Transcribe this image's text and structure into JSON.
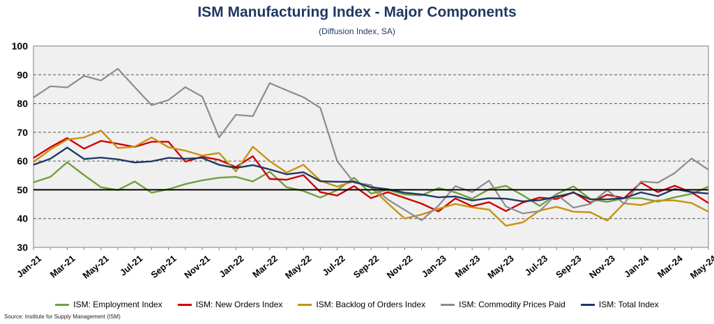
{
  "chart_data": {
    "type": "line",
    "title": "ISM Manufacturing Index - Major Components",
    "subtitle": "(Diffusion Index, SA)",
    "source": "Source: Institute for Supply Management (ISM)",
    "ylim": [
      30,
      100
    ],
    "yticks": [
      30,
      40,
      50,
      60,
      70,
      80,
      90,
      100
    ],
    "grid": true,
    "legend_position": "bottom",
    "reference_line": 50,
    "x": [
      "Jan-21",
      "Feb-21",
      "Mar-21",
      "Apr-21",
      "May-21",
      "Jun-21",
      "Jul-21",
      "Aug-21",
      "Sep-21",
      "Oct-21",
      "Nov-21",
      "Dec-21",
      "Jan-22",
      "Feb-22",
      "Mar-22",
      "Apr-22",
      "May-22",
      "Jun-22",
      "Jul-22",
      "Aug-22",
      "Sep-22",
      "Oct-22",
      "Nov-22",
      "Dec-22",
      "Jan-23",
      "Feb-23",
      "Mar-23",
      "Apr-23",
      "May-23",
      "Jun-23",
      "Jul-23",
      "Aug-23",
      "Sep-23",
      "Oct-23",
      "Nov-23",
      "Dec-23",
      "Jan-24",
      "Feb-24",
      "Mar-24",
      "Apr-24",
      "May-24"
    ],
    "x_tick_labels": [
      "Jan-21",
      "Mar-21",
      "May-21",
      "Jul-21",
      "Sep-21",
      "Nov-21",
      "Jan-22",
      "Mar-22",
      "May-22",
      "Jul-22",
      "Sep-22",
      "Nov-22",
      "Jan-23",
      "Mar-23",
      "May-23",
      "Jul-23",
      "Sep-23",
      "Nov-23",
      "Jan-24",
      "Mar-24",
      "May-24"
    ],
    "series": [
      {
        "name": "ISM: Employment Index",
        "color": "#70a03c",
        "values": [
          52.6,
          54.5,
          59.6,
          55.1,
          50.9,
          49.9,
          52.9,
          49.0,
          50.2,
          52.0,
          53.3,
          54.2,
          54.5,
          52.9,
          56.3,
          50.9,
          49.6,
          47.3,
          49.9,
          54.2,
          48.7,
          50.0,
          48.4,
          48.1,
          50.6,
          49.1,
          46.9,
          50.2,
          51.4,
          48.1,
          44.4,
          48.5,
          51.2,
          46.8,
          45.8,
          47.1,
          47.1,
          45.9,
          47.4,
          48.6,
          51.1
        ]
      },
      {
        "name": "ISM: New Orders Index",
        "color": "#d00000",
        "values": [
          61.1,
          64.8,
          68.0,
          64.3,
          67.0,
          66.0,
          64.9,
          66.7,
          66.7,
          59.8,
          61.5,
          60.4,
          57.9,
          61.7,
          53.8,
          53.5,
          55.1,
          49.2,
          48.0,
          51.3,
          47.1,
          49.2,
          47.2,
          45.2,
          42.5,
          47.0,
          44.3,
          45.7,
          42.6,
          45.6,
          47.3,
          46.8,
          49.2,
          45.5,
          48.3,
          47.1,
          52.5,
          49.2,
          51.4,
          49.1,
          45.4
        ]
      },
      {
        "name": "ISM: Backlog of Orders Index",
        "color": "#c9910f",
        "values": [
          59.7,
          64.0,
          67.5,
          68.2,
          70.6,
          64.5,
          65.0,
          68.2,
          64.8,
          63.6,
          61.9,
          62.8,
          56.4,
          65.0,
          60.0,
          56.0,
          58.7,
          53.2,
          51.1,
          53.0,
          50.9,
          45.3,
          40.0,
          41.4,
          43.4,
          45.1,
          43.9,
          43.1,
          37.5,
          38.7,
          42.8,
          44.1,
          42.4,
          42.2,
          39.3,
          45.3,
          44.7,
          46.3,
          46.3,
          45.4,
          42.4
        ]
      },
      {
        "name": "ISM: Commodity Prices Paid",
        "color": "#8c8c8c",
        "values": [
          82.1,
          86.0,
          85.6,
          89.6,
          88.0,
          92.1,
          85.7,
          79.4,
          81.2,
          85.7,
          82.4,
          68.2,
          76.1,
          75.6,
          87.1,
          84.6,
          82.2,
          78.5,
          60.0,
          52.5,
          51.7,
          46.6,
          43.0,
          39.4,
          44.5,
          51.3,
          49.2,
          53.2,
          44.2,
          41.8,
          42.6,
          48.4,
          43.8,
          45.1,
          49.9,
          45.2,
          52.9,
          52.5,
          55.8,
          60.9,
          57.0
        ]
      },
      {
        "name": "ISM: Total Index",
        "color": "#1f3864",
        "values": [
          58.7,
          60.8,
          64.7,
          60.7,
          61.2,
          60.6,
          59.5,
          59.9,
          61.1,
          60.8,
          61.1,
          58.7,
          57.6,
          58.6,
          57.1,
          55.4,
          56.1,
          53.0,
          52.8,
          52.8,
          50.9,
          50.2,
          49.0,
          48.4,
          47.4,
          47.7,
          46.3,
          47.1,
          46.9,
          46.0,
          46.4,
          47.6,
          49.0,
          46.7,
          46.7,
          47.1,
          49.1,
          47.8,
          50.3,
          49.2,
          48.7
        ]
      }
    ]
  }
}
